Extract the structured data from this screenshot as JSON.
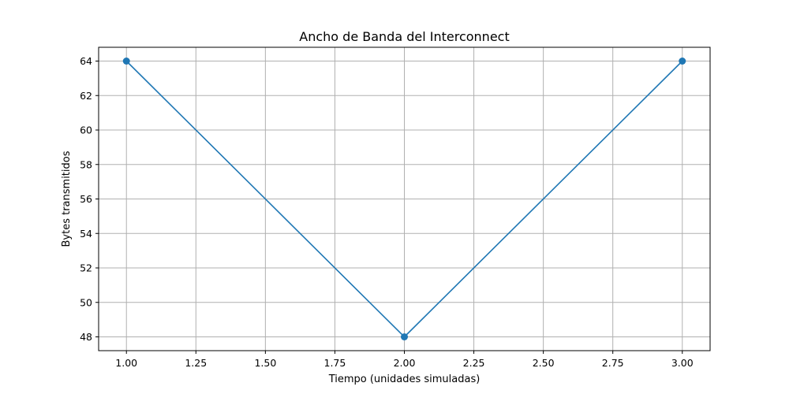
{
  "chart_data": {
    "type": "line",
    "title": "Ancho de Banda del Interconnect",
    "xlabel": "Tiempo (unidades simuladas)",
    "ylabel": "Bytes transmitidos",
    "xlim": [
      0.9,
      3.1
    ],
    "ylim": [
      47.2,
      64.8
    ],
    "x_ticks": [
      1.0,
      1.25,
      1.5,
      1.75,
      2.0,
      2.25,
      2.5,
      2.75,
      3.0
    ],
    "x_tick_labels": [
      "1.00",
      "1.25",
      "1.50",
      "1.75",
      "2.00",
      "2.25",
      "2.50",
      "2.75",
      "3.00"
    ],
    "y_ticks": [
      48,
      50,
      52,
      54,
      56,
      58,
      60,
      62,
      64
    ],
    "y_tick_labels": [
      "48",
      "50",
      "52",
      "54",
      "56",
      "58",
      "60",
      "62",
      "64"
    ],
    "grid": true,
    "series": [
      {
        "x": [
          1.0,
          2.0,
          3.0
        ],
        "y": [
          64,
          48,
          64
        ],
        "color": "#1f77b4",
        "marker": "circle"
      }
    ]
  },
  "colors": {
    "line": "#1f77b4",
    "grid": "#b0b0b0",
    "axes": "#000000",
    "background": "#ffffff"
  }
}
